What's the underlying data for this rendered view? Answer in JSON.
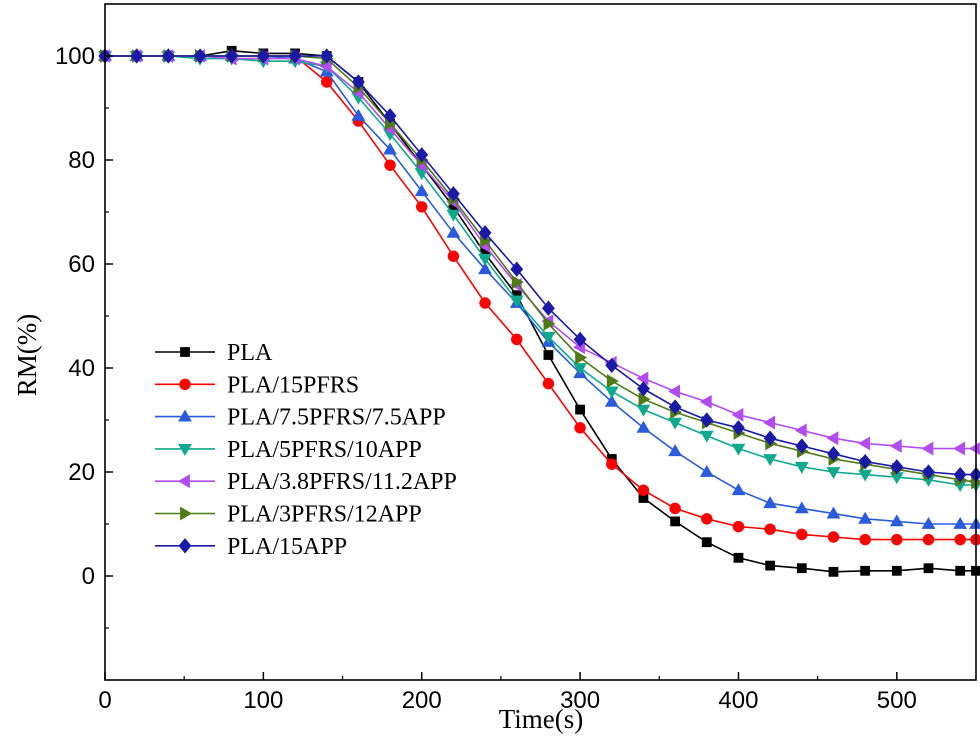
{
  "chart_data": {
    "type": "line",
    "xlabel": "Time(s)",
    "ylabel": "RM(%)",
    "xlim": [
      0,
      550
    ],
    "ylim": [
      -20,
      110
    ],
    "xticks": [
      0,
      100,
      200,
      300,
      400,
      500
    ],
    "yticks": [
      0,
      20,
      40,
      60,
      80,
      100
    ],
    "grid": false,
    "legend_position": "bottom-left",
    "series": [
      {
        "name": "PLA",
        "color": "#000000",
        "marker": "square",
        "x": [
          0,
          20,
          40,
          60,
          80,
          100,
          120,
          140,
          160,
          180,
          200,
          220,
          240,
          260,
          280,
          300,
          320,
          340,
          360,
          380,
          400,
          420,
          440,
          460,
          480,
          500,
          520,
          540,
          550
        ],
        "y": [
          100,
          100,
          100,
          100,
          101,
          100.5,
          100.5,
          100,
          95,
          87,
          79,
          71,
          62,
          54,
          42.5,
          32,
          22.5,
          15,
          10.5,
          6.5,
          3.5,
          2,
          1.5,
          0.8,
          1,
          1,
          1.5,
          1,
          1
        ]
      },
      {
        "name": "PLA/15PFRS",
        "color": "#ff0000",
        "marker": "circle",
        "x": [
          0,
          20,
          40,
          60,
          80,
          100,
          120,
          140,
          160,
          180,
          200,
          220,
          240,
          260,
          280,
          300,
          320,
          340,
          360,
          380,
          400,
          420,
          440,
          460,
          480,
          500,
          520,
          540,
          550
        ],
        "y": [
          100,
          100,
          100,
          100,
          100,
          100,
          100,
          95,
          87.5,
          79,
          71,
          61.5,
          52.5,
          45.5,
          37,
          28.5,
          21.5,
          16.5,
          13,
          11,
          9.5,
          9,
          8,
          7.5,
          7,
          7,
          7,
          7,
          7
        ]
      },
      {
        "name": "PLA/7.5PFRS/7.5APP",
        "color": "#2a5bdc",
        "marker": "triangle-up",
        "x": [
          0,
          20,
          40,
          60,
          80,
          100,
          120,
          140,
          160,
          180,
          200,
          220,
          240,
          260,
          280,
          300,
          320,
          340,
          360,
          380,
          400,
          420,
          440,
          460,
          480,
          500,
          520,
          540,
          550
        ],
        "y": [
          100,
          100,
          100,
          100,
          100,
          100,
          99.5,
          97,
          88.5,
          82,
          74,
          66,
          59,
          52.5,
          45,
          39,
          33.5,
          28.5,
          24,
          20,
          16.5,
          14,
          13,
          12,
          11,
          10.5,
          10,
          10,
          10
        ]
      },
      {
        "name": "PLA/5PFRS/10APP",
        "color": "#10a98e",
        "marker": "triangle-down",
        "x": [
          0,
          20,
          40,
          60,
          80,
          100,
          120,
          140,
          160,
          180,
          200,
          220,
          240,
          260,
          280,
          300,
          320,
          340,
          360,
          380,
          400,
          420,
          440,
          460,
          480,
          500,
          520,
          540,
          550
        ],
        "y": [
          100,
          100,
          100,
          99.5,
          99.5,
          99,
          99,
          98,
          92,
          85,
          77.5,
          69.5,
          61,
          53,
          46,
          40,
          35.5,
          32,
          29.5,
          27,
          24.5,
          22.5,
          21,
          20,
          19.5,
          19,
          18.5,
          17.5,
          17.5
        ]
      },
      {
        "name": "PLA/3.8PFRS/11.2APP",
        "color": "#b14cf0",
        "marker": "triangle-left",
        "x": [
          0,
          20,
          40,
          60,
          80,
          100,
          120,
          140,
          160,
          180,
          200,
          220,
          240,
          260,
          280,
          300,
          320,
          340,
          360,
          380,
          400,
          420,
          440,
          460,
          480,
          500,
          520,
          540,
          550
        ],
        "y": [
          100,
          100,
          100,
          100,
          99.5,
          99.5,
          99.5,
          98,
          93,
          86,
          79,
          72,
          63.5,
          56,
          49,
          44,
          41,
          38,
          35.5,
          33.5,
          31,
          29.5,
          28,
          26.5,
          25.5,
          25,
          24.5,
          24.5,
          24.5
        ]
      },
      {
        "name": "PLA/3PFRS/12APP",
        "color": "#4f7a16",
        "marker": "triangle-right",
        "x": [
          0,
          20,
          40,
          60,
          80,
          100,
          120,
          140,
          160,
          180,
          200,
          220,
          240,
          260,
          280,
          300,
          320,
          340,
          360,
          380,
          400,
          420,
          440,
          460,
          480,
          500,
          520,
          540,
          550
        ],
        "y": [
          100,
          100,
          100,
          100,
          100,
          100,
          100,
          99.5,
          94,
          87,
          80,
          72.5,
          64.5,
          56.5,
          48.5,
          42,
          37.5,
          34,
          31.5,
          29.5,
          27.5,
          25.5,
          24,
          22.5,
          21.5,
          20.5,
          19.5,
          18.5,
          18
        ]
      },
      {
        "name": "PLA/15APP",
        "color": "#1a1aa6",
        "marker": "diamond",
        "x": [
          0,
          20,
          40,
          60,
          80,
          100,
          120,
          140,
          160,
          180,
          200,
          220,
          240,
          260,
          280,
          300,
          320,
          340,
          360,
          380,
          400,
          420,
          440,
          460,
          480,
          500,
          520,
          540,
          550
        ],
        "y": [
          100,
          100,
          100,
          100,
          100,
          100,
          100,
          100,
          95,
          88.5,
          81,
          73.5,
          66,
          59,
          51.5,
          45.5,
          40.5,
          36,
          32.5,
          30,
          28.5,
          26.5,
          25,
          23.5,
          22,
          21,
          20,
          19.5,
          19.5
        ]
      }
    ]
  }
}
